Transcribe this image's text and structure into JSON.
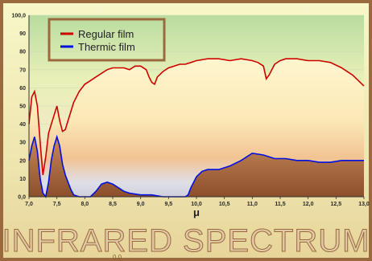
{
  "chart_data": {
    "type": "line",
    "title": "INFRARED SPECTRUM",
    "xlabel": "μ",
    "ylabel": "",
    "xlim": [
      7.0,
      13.0
    ],
    "ylim": [
      0,
      100
    ],
    "x_ticks": [
      "7,0",
      "7,5",
      "8,0",
      "8,5",
      "9,0",
      "9,5",
      "10,0",
      "10,5",
      "11,0",
      "11,5",
      "12,0",
      "12,5",
      "13,0"
    ],
    "y_ticks": [
      "0,0",
      "10",
      "20",
      "30",
      "40",
      "50",
      "60",
      "70",
      "80",
      "90",
      "100,0"
    ],
    "legend_position": "top-left",
    "series": [
      {
        "name": "Regular film",
        "color": "#d00000",
        "x": [
          7.0,
          7.05,
          7.1,
          7.15,
          7.2,
          7.25,
          7.3,
          7.35,
          7.4,
          7.45,
          7.5,
          7.55,
          7.6,
          7.65,
          7.7,
          7.8,
          7.9,
          8.0,
          8.1,
          8.2,
          8.3,
          8.4,
          8.5,
          8.6,
          8.7,
          8.8,
          8.9,
          9.0,
          9.1,
          9.15,
          9.2,
          9.25,
          9.3,
          9.4,
          9.5,
          9.6,
          9.7,
          9.8,
          9.9,
          10.0,
          10.2,
          10.4,
          10.6,
          10.8,
          11.0,
          11.1,
          11.2,
          11.25,
          11.3,
          11.4,
          11.5,
          11.6,
          11.8,
          12.0,
          12.2,
          12.4,
          12.6,
          12.7,
          12.8,
          12.9,
          13.0
        ],
        "y": [
          40,
          55,
          58,
          50,
          30,
          12,
          22,
          35,
          40,
          45,
          50,
          42,
          36,
          37,
          42,
          52,
          58,
          62,
          64,
          66,
          68,
          70,
          71,
          71,
          71,
          70,
          72,
          72,
          70,
          66,
          63,
          62,
          66,
          69,
          71,
          72,
          73,
          73,
          74,
          75,
          76,
          76,
          75,
          76,
          75,
          74,
          72,
          65,
          67,
          73,
          75,
          76,
          76,
          75,
          75,
          74,
          71,
          69,
          67,
          64,
          61
        ]
      },
      {
        "name": "Thermic film",
        "color": "#0010e0",
        "x": [
          7.0,
          7.05,
          7.1,
          7.15,
          7.2,
          7.25,
          7.3,
          7.35,
          7.4,
          7.45,
          7.5,
          7.55,
          7.6,
          7.65,
          7.7,
          7.75,
          7.8,
          7.9,
          8.0,
          8.1,
          8.2,
          8.3,
          8.4,
          8.5,
          8.6,
          8.7,
          8.8,
          9.0,
          9.2,
          9.4,
          9.6,
          9.8,
          9.85,
          9.9,
          10.0,
          10.1,
          10.2,
          10.4,
          10.6,
          10.8,
          10.9,
          11.0,
          11.2,
          11.4,
          11.6,
          11.8,
          12.0,
          12.2,
          12.4,
          12.6,
          12.8,
          13.0
        ],
        "y": [
          20,
          28,
          33,
          25,
          10,
          2,
          0,
          8,
          20,
          28,
          33,
          28,
          18,
          12,
          8,
          4,
          1,
          0,
          0,
          0,
          3,
          7,
          8,
          7,
          5,
          3,
          2,
          1,
          1,
          0,
          0,
          0,
          1,
          5,
          11,
          14,
          15,
          15,
          17,
          20,
          22,
          24,
          23,
          21,
          21,
          20,
          20,
          19,
          19,
          20,
          20,
          20
        ]
      }
    ]
  },
  "legend": {
    "items": [
      {
        "label": "Regular film",
        "color": "#d00000"
      },
      {
        "label": "Thermic film",
        "color": "#0010e0"
      }
    ]
  },
  "banner": {
    "title": "INFRARED SPECTRUM",
    "stray_label": "0.0"
  }
}
